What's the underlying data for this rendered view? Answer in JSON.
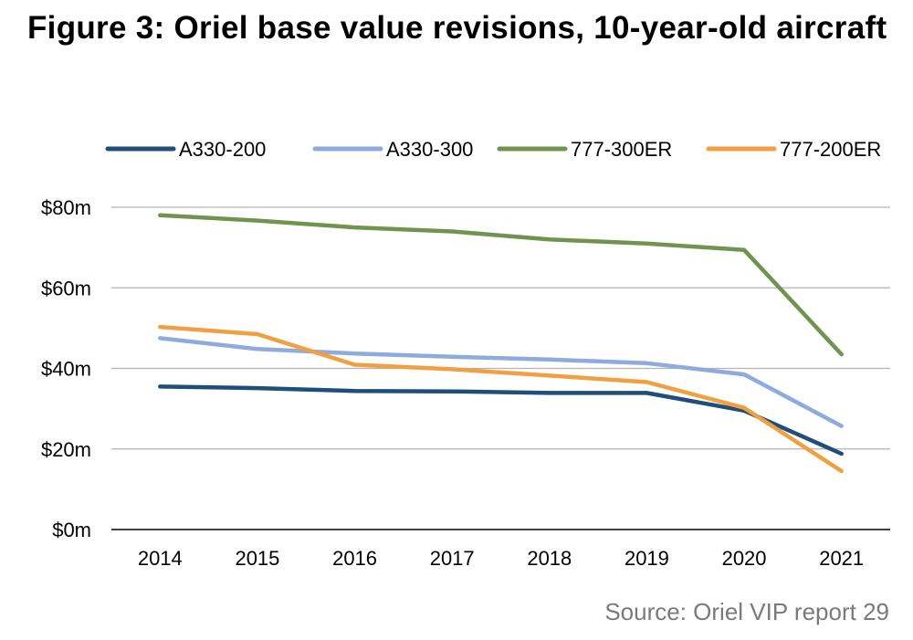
{
  "title": "Figure 3: Oriel base value revisions, 10-year-old aircraft",
  "source": "Source: Oriel VIP report 29",
  "chart_data": {
    "type": "line",
    "title": "Figure 3: Oriel base value revisions, 10-year-old aircraft",
    "xlabel": "",
    "ylabel": "",
    "categories": [
      "2014",
      "2015",
      "2016",
      "2017",
      "2018",
      "2019",
      "2020",
      "2021"
    ],
    "ylim": [
      0,
      80
    ],
    "yticks": [
      0,
      20,
      40,
      60,
      80
    ],
    "ytick_labels": [
      "$0m",
      "$20m",
      "$40m",
      "$60m",
      "$80m"
    ],
    "grid": true,
    "legend": "top",
    "series": [
      {
        "name": "A330-200",
        "color": "#1f4e79",
        "values": [
          35.5,
          35.1,
          34.4,
          34.3,
          33.9,
          33.9,
          29.5,
          18.8
        ]
      },
      {
        "name": "A330-300",
        "color": "#8faadc",
        "values": [
          47.5,
          44.8,
          43.7,
          42.9,
          42.2,
          41.3,
          38.5,
          25.7
        ]
      },
      {
        "name": "777-300ER",
        "color": "#70934f",
        "values": [
          78.0,
          76.7,
          75.0,
          74.0,
          72.0,
          71.0,
          69.4,
          43.5
        ]
      },
      {
        "name": "777-200ER",
        "color": "#f0a040",
        "values": [
          50.3,
          48.5,
          40.9,
          39.8,
          38.2,
          36.6,
          30.2,
          14.5
        ]
      }
    ]
  }
}
